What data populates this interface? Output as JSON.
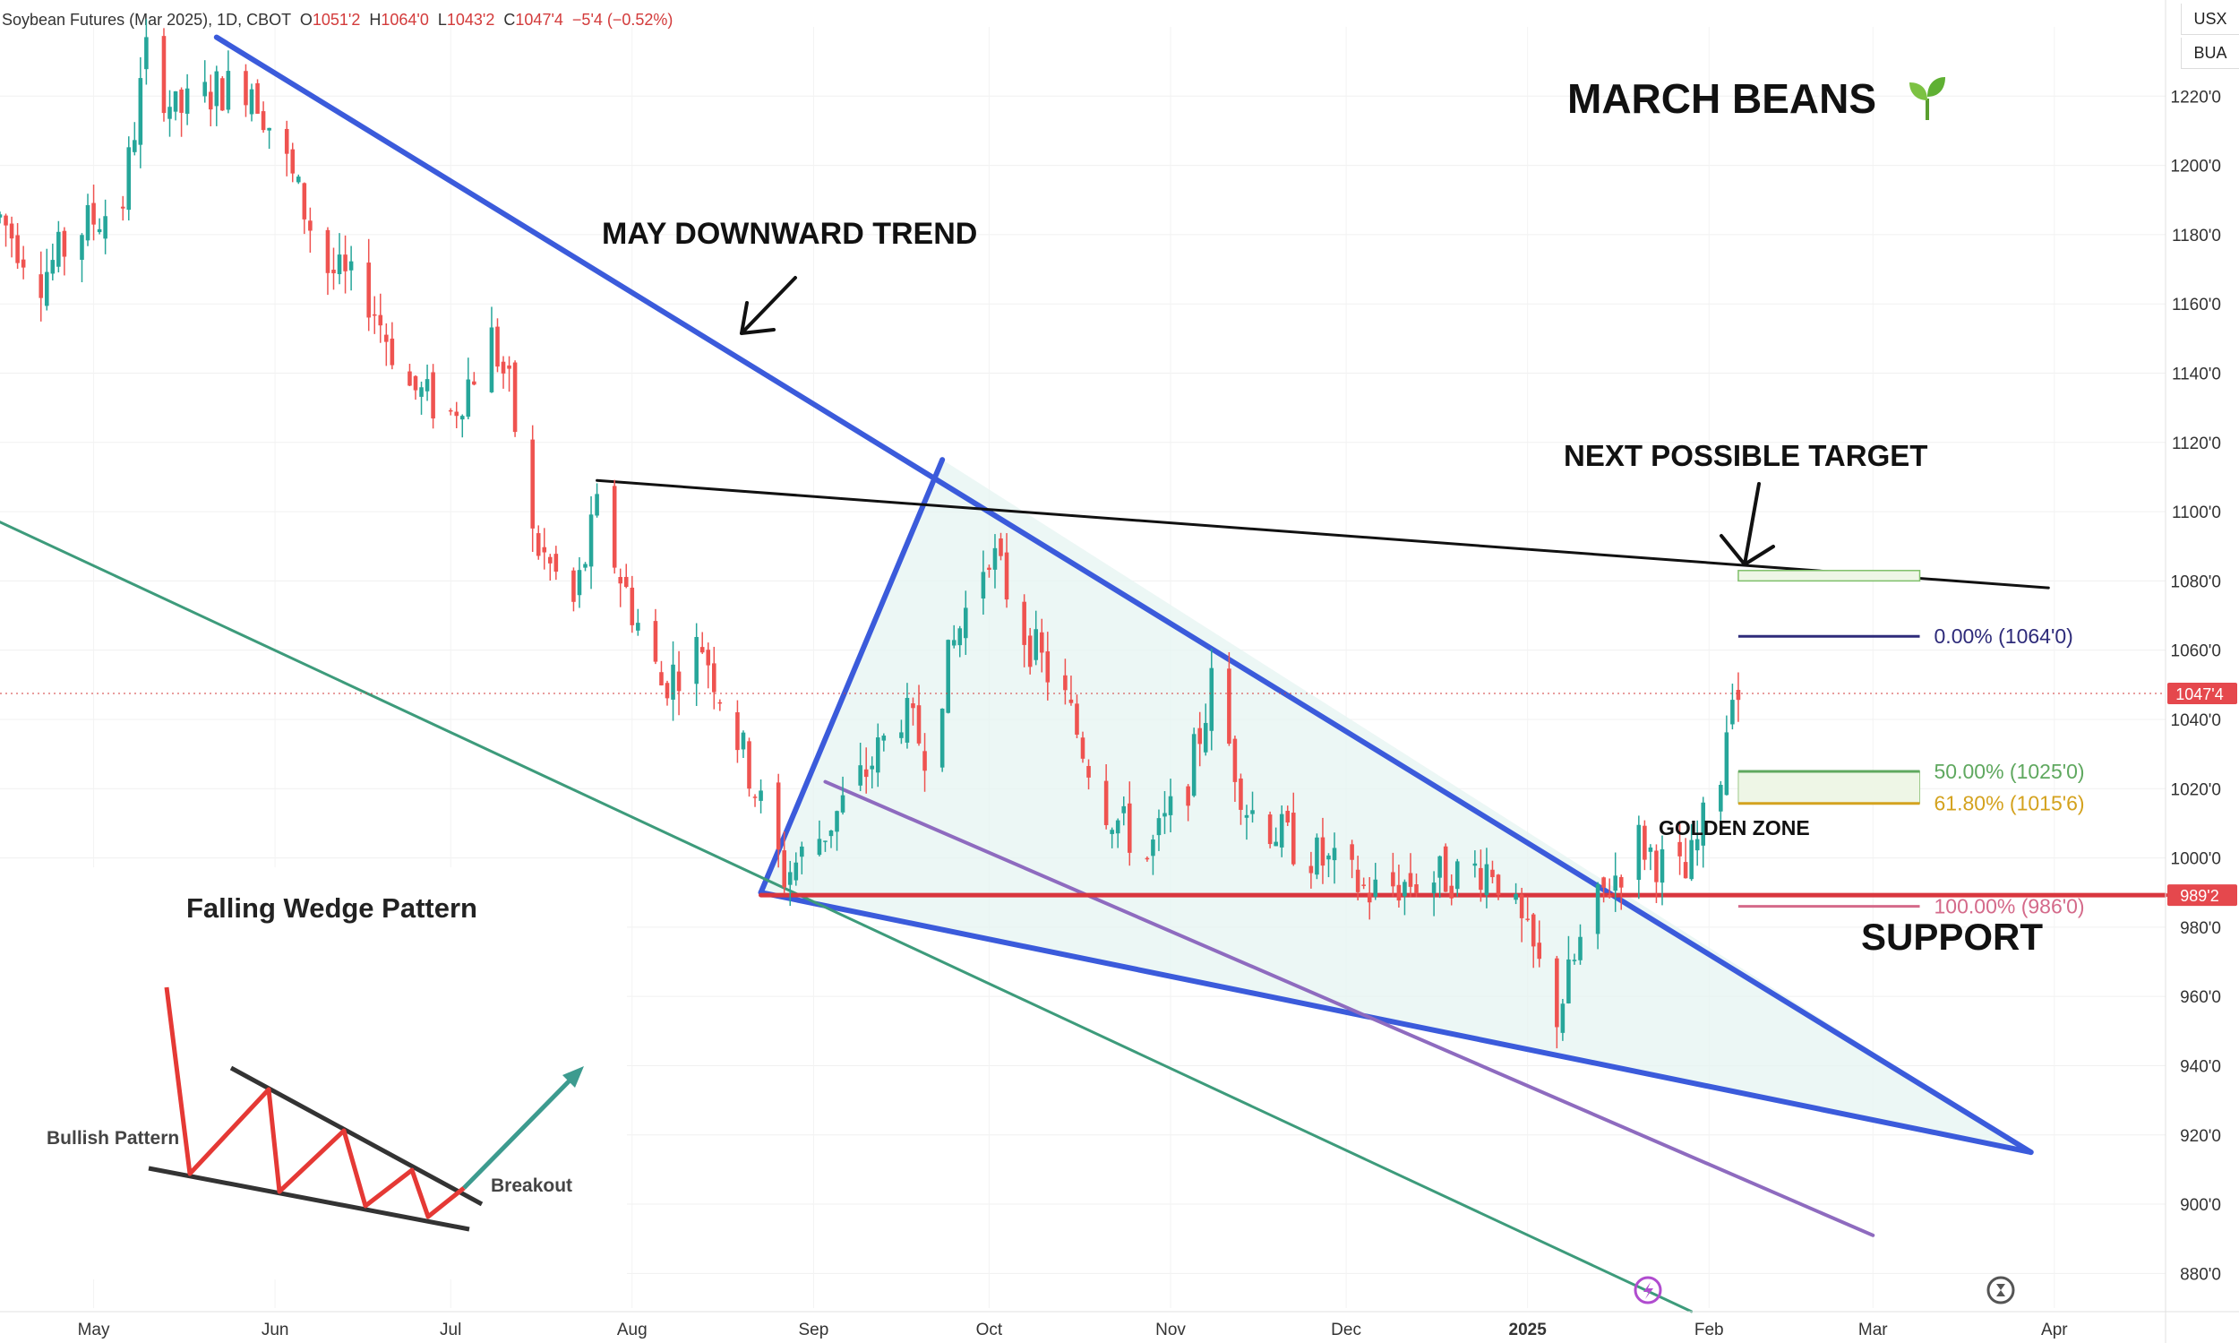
{
  "header": {
    "symbol": "Soybean Futures (Mar 2025), 1D, CBOT",
    "open_label": "O",
    "open": "1051'2",
    "high_label": "H",
    "high": "1064'0",
    "low_label": "L",
    "low": "1043'2",
    "close_label": "C",
    "close": "1047'4",
    "change": "−5'4 (−0.52%)"
  },
  "right_tags": {
    "currency": "USX",
    "unit": "BUA"
  },
  "chart_data": {
    "type": "candlestick",
    "title": "MARCH BEANS",
    "title_icon": "seedling-icon",
    "ylim": [
      870,
      1240
    ],
    "y_ticks": [
      "1220'0",
      "1200'0",
      "1180'0",
      "1160'0",
      "1140'0",
      "1120'0",
      "1100'0",
      "1080'0",
      "1060'0",
      "1040'0",
      "1020'0",
      "1000'0",
      "980'0",
      "960'0",
      "940'0",
      "920'0",
      "900'0",
      "880'0"
    ],
    "y_tick_values": [
      1220,
      1200,
      1180,
      1160,
      1140,
      1120,
      1100,
      1080,
      1060,
      1040,
      1020,
      1000,
      980,
      960,
      940,
      920,
      900,
      880
    ],
    "x_ticks": [
      "May",
      "Jun",
      "Jul",
      "Aug",
      "Sep",
      "Oct",
      "Nov",
      "Dec",
      "2025",
      "Feb",
      "Mar",
      "Apr"
    ],
    "x_tick_dates": [
      "2024-05-01",
      "2024-06-01",
      "2024-07-01",
      "2024-08-01",
      "2024-09-01",
      "2024-10-01",
      "2024-11-01",
      "2024-12-01",
      "2025-01-01",
      "2025-02-01",
      "2025-03-01",
      "2025-04-01"
    ],
    "x_range": [
      "2024-04-15",
      "2025-04-20"
    ],
    "last_price": "1047'4",
    "last_price_value": 1047.5,
    "support_price": "989'2",
    "support_value": 989.25,
    "colors": {
      "up": "#26a69a",
      "down": "#ef5350",
      "wedge": "#3b5bdb",
      "channel": "#3d9b7b",
      "inner": "#8e6bbf",
      "support": "#d9363e",
      "resistance": "#111111",
      "fill": "#e6f4f1"
    },
    "ohlc_anchors": [
      {
        "d": "2024-04-15",
        "c": 1185
      },
      {
        "d": "2024-04-22",
        "c": 1168
      },
      {
        "d": "2024-04-29",
        "c": 1182
      },
      {
        "d": "2024-05-06",
        "c": 1190
      },
      {
        "d": "2024-05-10",
        "c": 1232
      },
      {
        "d": "2024-05-15",
        "c": 1215
      },
      {
        "d": "2024-05-22",
        "c": 1222
      },
      {
        "d": "2024-05-28",
        "c": 1224
      },
      {
        "d": "2024-06-03",
        "c": 1200
      },
      {
        "d": "2024-06-10",
        "c": 1170
      },
      {
        "d": "2024-06-17",
        "c": 1162
      },
      {
        "d": "2024-06-24",
        "c": 1136
      },
      {
        "d": "2024-07-01",
        "c": 1128
      },
      {
        "d": "2024-07-08",
        "c": 1150
      },
      {
        "d": "2024-07-11",
        "c": 1135
      },
      {
        "d": "2024-07-15",
        "c": 1092
      },
      {
        "d": "2024-07-22",
        "c": 1073
      },
      {
        "d": "2024-07-26",
        "c": 1100
      },
      {
        "d": "2024-08-01",
        "c": 1072
      },
      {
        "d": "2024-08-06",
        "c": 1050
      },
      {
        "d": "2024-08-13",
        "c": 1062
      },
      {
        "d": "2024-08-20",
        "c": 1030
      },
      {
        "d": "2024-08-27",
        "c": 995
      },
      {
        "d": "2024-09-03",
        "c": 1008
      },
      {
        "d": "2024-09-10",
        "c": 1025
      },
      {
        "d": "2024-09-16",
        "c": 1042
      },
      {
        "d": "2024-09-20",
        "c": 1032
      },
      {
        "d": "2024-09-25",
        "c": 1062
      },
      {
        "d": "2024-10-01",
        "c": 1090
      },
      {
        "d": "2024-10-07",
        "c": 1065
      },
      {
        "d": "2024-10-14",
        "c": 1045
      },
      {
        "d": "2024-10-21",
        "c": 1015
      },
      {
        "d": "2024-10-28",
        "c": 1000
      },
      {
        "d": "2024-11-04",
        "c": 1022
      },
      {
        "d": "2024-11-08",
        "c": 1050
      },
      {
        "d": "2024-11-14",
        "c": 1015
      },
      {
        "d": "2024-11-21",
        "c": 1005
      },
      {
        "d": "2024-11-28",
        "c": 998
      },
      {
        "d": "2024-12-05",
        "c": 990
      },
      {
        "d": "2024-12-12",
        "c": 993
      },
      {
        "d": "2024-12-19",
        "c": 995
      },
      {
        "d": "2024-12-26",
        "c": 998
      },
      {
        "d": "2025-01-02",
        "c": 972
      },
      {
        "d": "2025-01-06",
        "c": 955
      },
      {
        "d": "2025-01-10",
        "c": 975
      },
      {
        "d": "2025-01-14",
        "c": 990
      },
      {
        "d": "2025-01-20",
        "c": 1005
      },
      {
        "d": "2025-01-24",
        "c": 998
      },
      {
        "d": "2025-01-28",
        "c": 994
      },
      {
        "d": "2025-02-03",
        "c": 1025
      },
      {
        "d": "2025-02-05",
        "c": 1052
      },
      {
        "d": "2025-02-06",
        "c": 1047.5
      }
    ],
    "trendlines": [
      {
        "name": "may-downward-trend",
        "from": {
          "d": "2024-05-22",
          "p": 1237
        },
        "to": {
          "d": "2025-03-28",
          "p": 915
        }
      },
      {
        "name": "wedge-left-edge",
        "from": {
          "d": "2024-08-23",
          "p": 990
        },
        "to": {
          "d": "2024-09-23",
          "p": 1115
        }
      },
      {
        "name": "wedge-bottom",
        "from": {
          "d": "2024-08-23",
          "p": 990
        },
        "to": {
          "d": "2025-03-28",
          "p": 915
        }
      },
      {
        "name": "resistance-line",
        "from": {
          "d": "2024-07-26",
          "p": 1109
        },
        "to": {
          "d": "2025-03-31",
          "p": 1078
        }
      },
      {
        "name": "inner-channel",
        "from": {
          "d": "2024-09-03",
          "p": 1022
        },
        "to": {
          "d": "2025-03-01",
          "p": 891
        }
      },
      {
        "name": "outer-channel",
        "from": {
          "d": "2024-04-15",
          "p": 1097
        },
        "to": {
          "d": "2025-01-29",
          "p": 869
        }
      },
      {
        "name": "support-line",
        "from": {
          "d": "2024-08-23",
          "p": 989.25
        },
        "to": {
          "d": "2025-04-20",
          "p": 989.25
        }
      }
    ],
    "fib_levels": [
      {
        "label": "0.00% (1064'0)",
        "value": 1064,
        "color": "#2e2b7a"
      },
      {
        "label": "50.00% (1025'0)",
        "value": 1025,
        "color": "#5fa85f"
      },
      {
        "label": "61.80% (1015'6)",
        "value": 1015.75,
        "color": "#d4a21e"
      },
      {
        "label": "100.00% (986'0)",
        "value": 986,
        "color": "#d46a8a"
      }
    ],
    "target_zone": {
      "from": 1083,
      "to": 1080
    },
    "annotations": {
      "downtrend": "MAY DOWNWARD TREND",
      "target": "NEXT POSSIBLE TARGET",
      "golden_zone": "GOLDEN ZONE",
      "support": "SUPPORT"
    },
    "inset": {
      "title": "Falling Wedge Pattern",
      "left_label": "Bullish Pattern",
      "right_label": "Breakout"
    }
  }
}
